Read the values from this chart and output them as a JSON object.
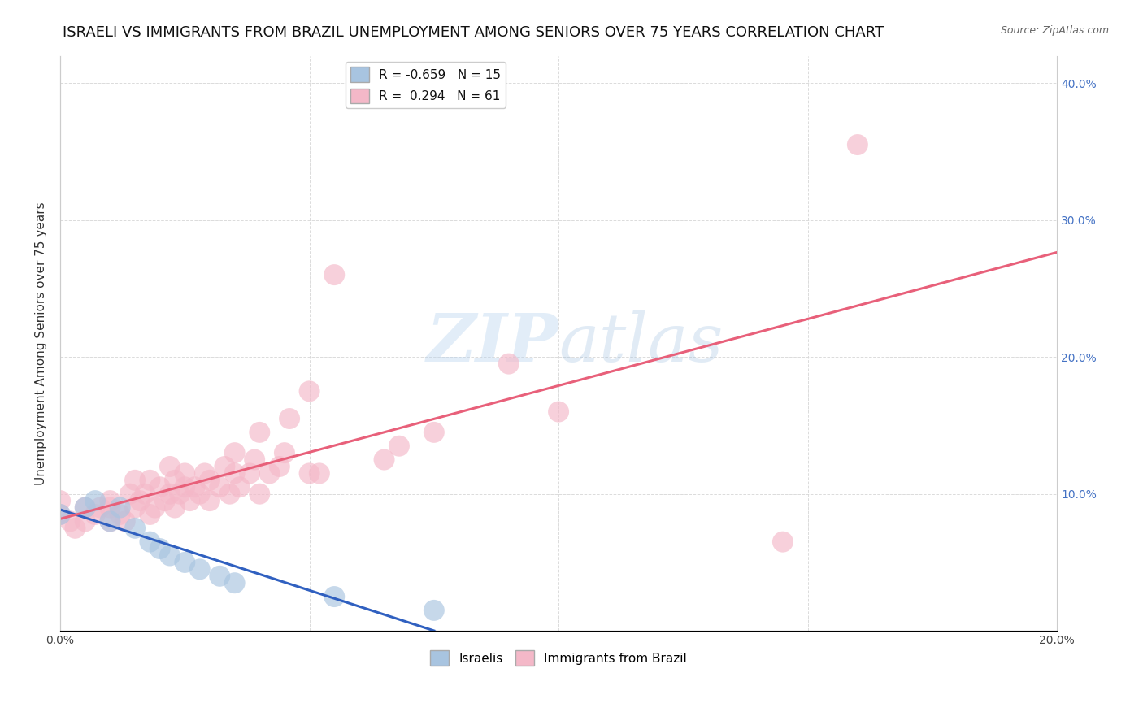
{
  "title": "ISRAELI VS IMMIGRANTS FROM BRAZIL UNEMPLOYMENT AMONG SENIORS OVER 75 YEARS CORRELATION CHART",
  "source": "Source: ZipAtlas.com",
  "ylabel": "Unemployment Among Seniors over 75 years",
  "xlim": [
    0.0,
    0.2
  ],
  "ylim": [
    0.0,
    0.42
  ],
  "xticks": [
    0.0,
    0.05,
    0.1,
    0.15,
    0.2
  ],
  "yticks": [
    0.0,
    0.1,
    0.2,
    0.3,
    0.4
  ],
  "xticklabels": [
    "0.0%",
    "",
    "",
    "",
    "20.0%"
  ],
  "yticklabels_left": [
    "",
    "",
    "",
    "",
    ""
  ],
  "yticklabels_right": [
    "",
    "10.0%",
    "20.0%",
    "30.0%",
    "40.0%"
  ],
  "israeli_color": "#a8c4e0",
  "brazil_color": "#f4b8c8",
  "israeli_R": -0.659,
  "israeli_N": 15,
  "brazil_R": 0.294,
  "brazil_N": 61,
  "israeli_line_color": "#3060c0",
  "brazil_line_color": "#e8607a",
  "right_tick_color": "#4472c4",
  "israeli_scatter_x": [
    0.0,
    0.005,
    0.007,
    0.01,
    0.012,
    0.015,
    0.018,
    0.02,
    0.022,
    0.025,
    0.028,
    0.032,
    0.035,
    0.055,
    0.075
  ],
  "israeli_scatter_y": [
    0.085,
    0.09,
    0.095,
    0.08,
    0.09,
    0.075,
    0.065,
    0.06,
    0.055,
    0.05,
    0.045,
    0.04,
    0.035,
    0.025,
    0.015
  ],
  "brazil_scatter_x": [
    0.0,
    0.0,
    0.002,
    0.003,
    0.005,
    0.005,
    0.007,
    0.008,
    0.01,
    0.01,
    0.01,
    0.012,
    0.013,
    0.014,
    0.015,
    0.015,
    0.016,
    0.017,
    0.018,
    0.018,
    0.019,
    0.02,
    0.021,
    0.022,
    0.022,
    0.023,
    0.023,
    0.024,
    0.025,
    0.025,
    0.026,
    0.027,
    0.028,
    0.029,
    0.03,
    0.03,
    0.032,
    0.033,
    0.034,
    0.035,
    0.035,
    0.036,
    0.038,
    0.039,
    0.04,
    0.04,
    0.042,
    0.044,
    0.045,
    0.046,
    0.05,
    0.05,
    0.052,
    0.055,
    0.065,
    0.068,
    0.075,
    0.09,
    0.1,
    0.145,
    0.16
  ],
  "brazil_scatter_y": [
    0.085,
    0.095,
    0.08,
    0.075,
    0.08,
    0.09,
    0.085,
    0.09,
    0.08,
    0.09,
    0.095,
    0.085,
    0.08,
    0.1,
    0.09,
    0.11,
    0.095,
    0.1,
    0.085,
    0.11,
    0.09,
    0.105,
    0.095,
    0.1,
    0.12,
    0.09,
    0.11,
    0.1,
    0.105,
    0.115,
    0.095,
    0.105,
    0.1,
    0.115,
    0.095,
    0.11,
    0.105,
    0.12,
    0.1,
    0.115,
    0.13,
    0.105,
    0.115,
    0.125,
    0.1,
    0.145,
    0.115,
    0.12,
    0.13,
    0.155,
    0.115,
    0.175,
    0.115,
    0.26,
    0.125,
    0.135,
    0.145,
    0.195,
    0.16,
    0.065,
    0.355
  ],
  "watermark_zip": "ZIP",
  "watermark_atlas": "atlas",
  "background_color": "#ffffff",
  "grid_color": "#d8d8d8",
  "title_fontsize": 13,
  "label_fontsize": 11,
  "tick_fontsize": 10
}
